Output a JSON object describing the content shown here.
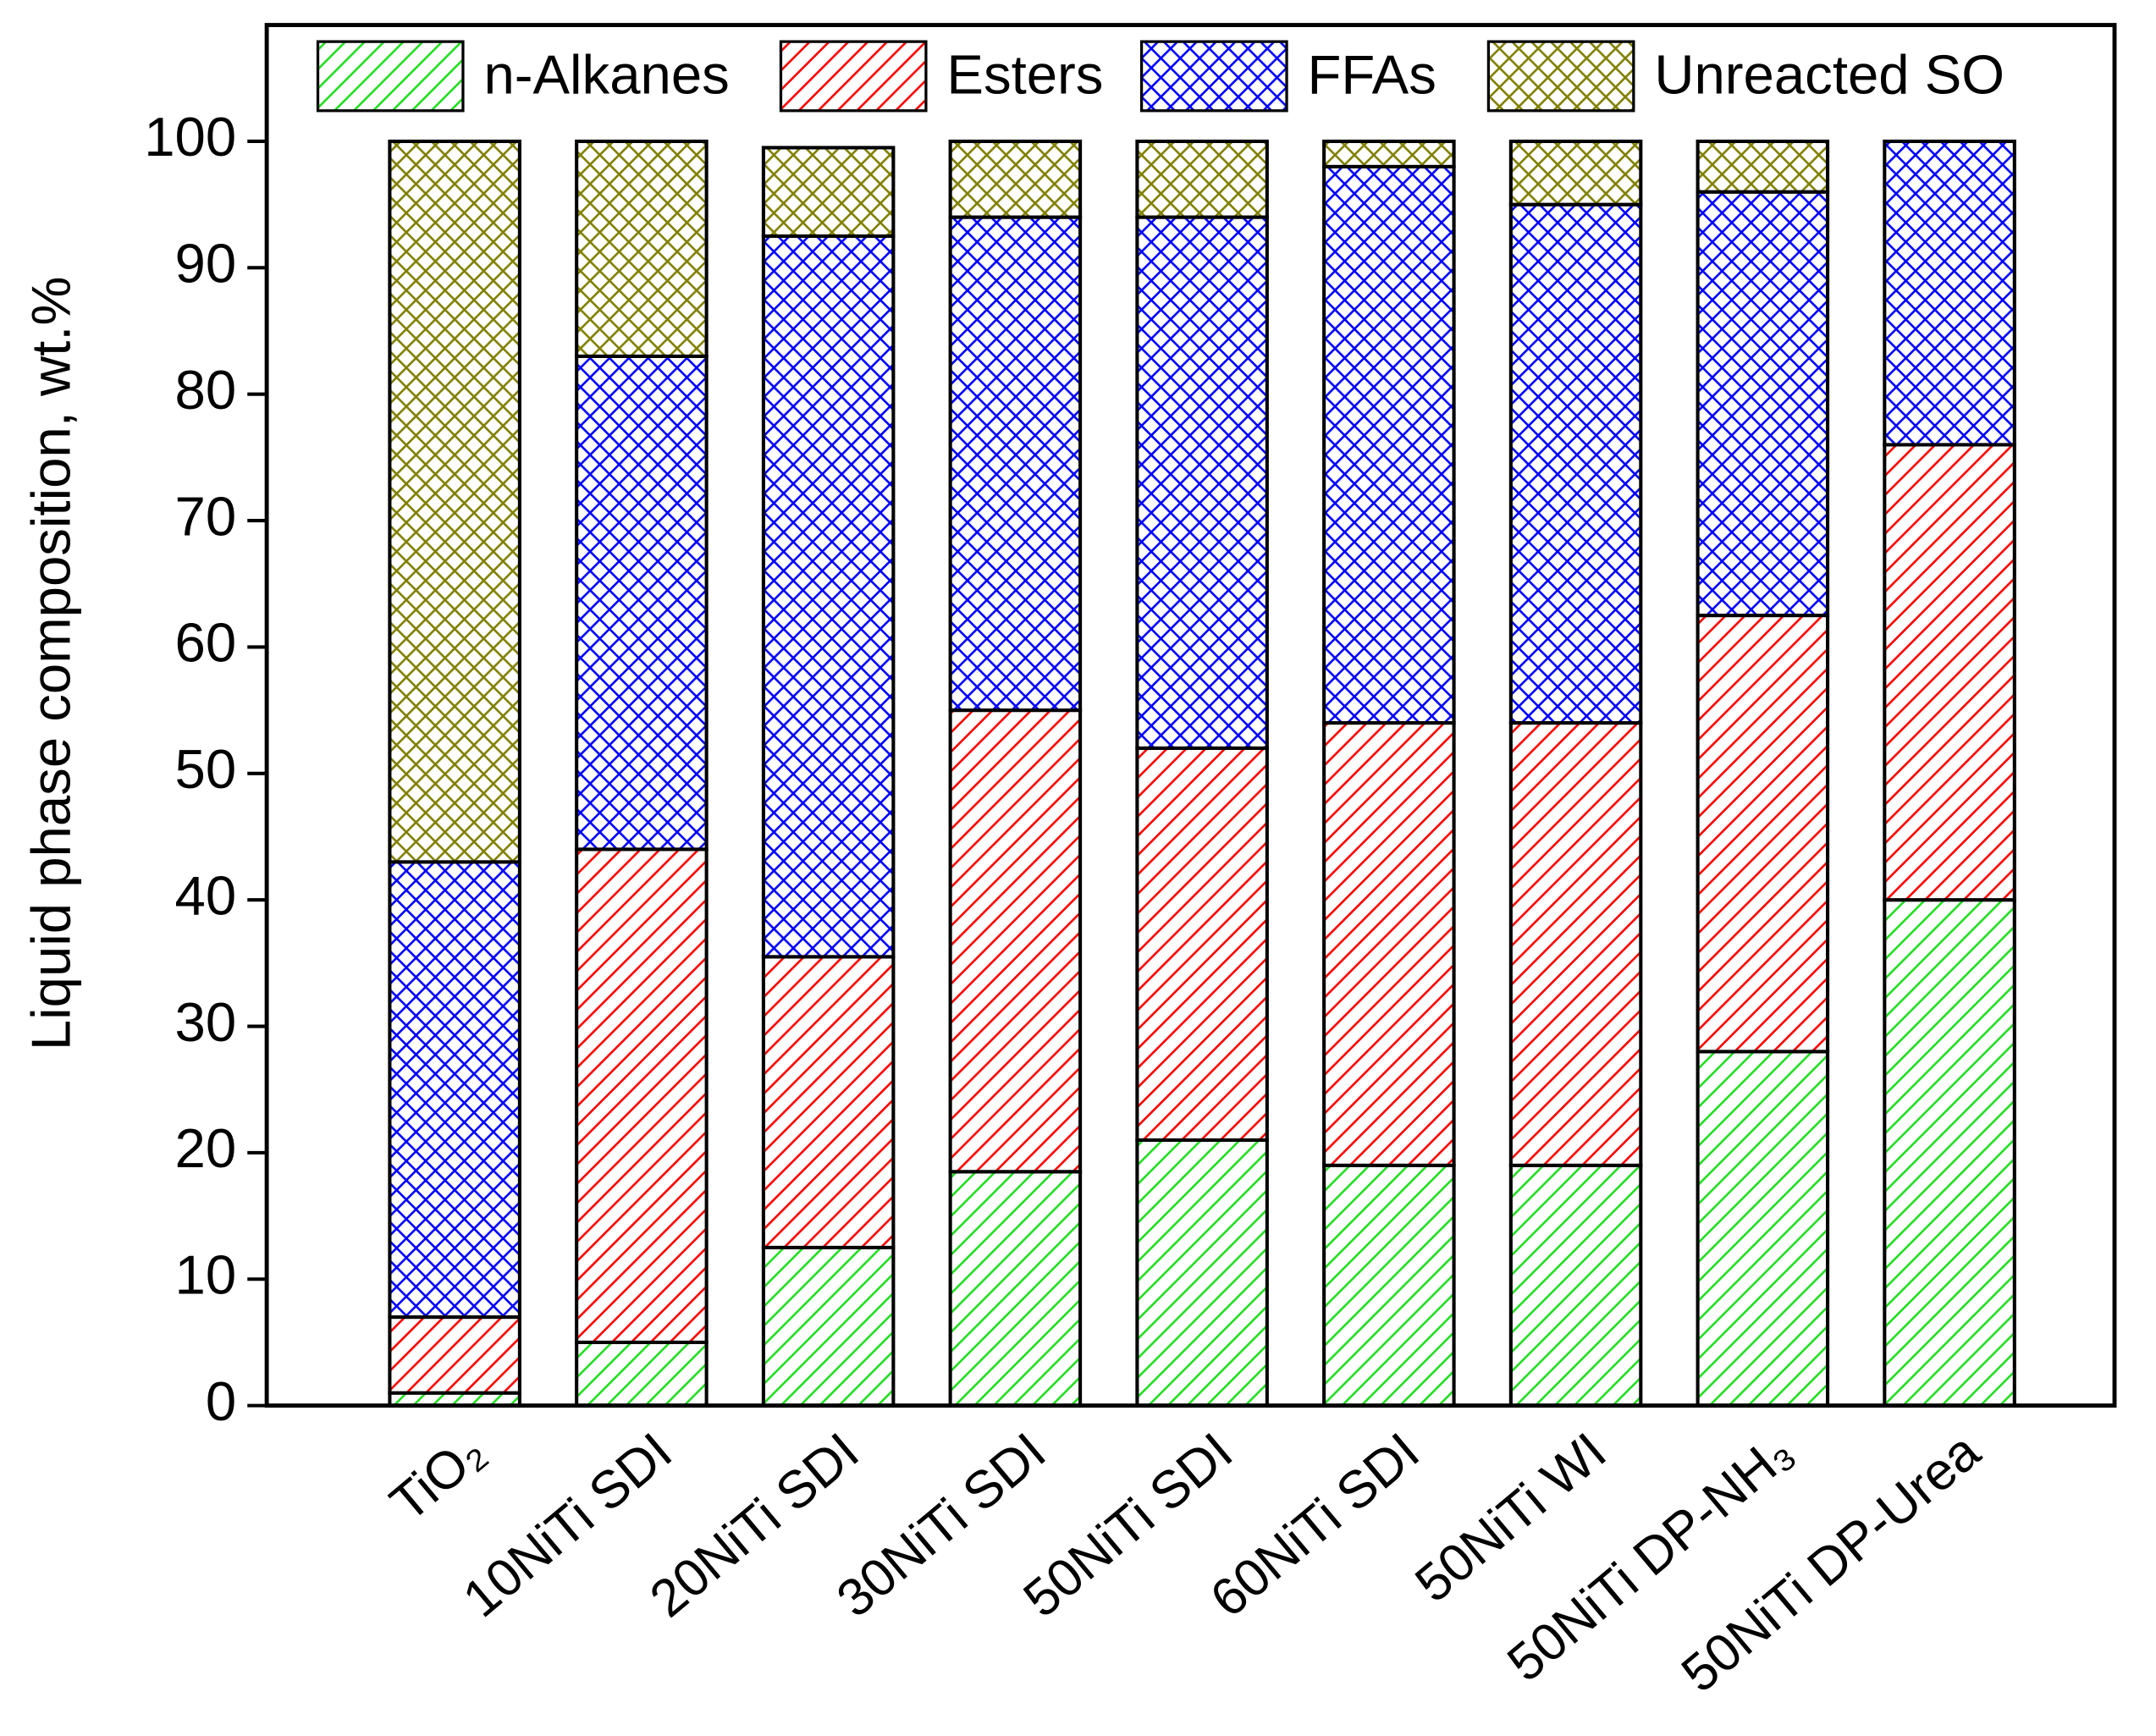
{
  "chart_data": {
    "type": "stacked_bar",
    "y_label": "Liquid phase composition, wt.%",
    "categories": [
      "TiO₂",
      "10NiTi SDI",
      "20NiTi  SDI",
      "30NiTi  SDI",
      "50NiTi  SDI",
      "60NiTi SDI",
      "50NiTi WI",
      "50NiTi DP-NH₃",
      "50NiTi DP-Urea"
    ],
    "series": [
      {
        "name": "n-Alkanes",
        "color": "#22dd22",
        "hatch": "diagonal",
        "values": [
          1,
          5,
          12.5,
          18.5,
          21,
          19,
          19,
          28,
          40
        ]
      },
      {
        "name": "Esters",
        "color": "#ff0000",
        "hatch": "diagonal",
        "values": [
          6,
          39,
          23,
          36.5,
          31,
          35,
          35,
          34.5,
          36
        ]
      },
      {
        "name": "FFAs",
        "color": "#0000ff",
        "hatch": "cross",
        "values": [
          36,
          39,
          57,
          39,
          42,
          44,
          41,
          33.5,
          24
        ]
      },
      {
        "name": "Unreacted SO",
        "color": "#808000",
        "hatch": "cross",
        "values": [
          57,
          17,
          7,
          6,
          6,
          2,
          5,
          4,
          0
        ]
      }
    ],
    "ylim": [
      0,
      109.2
    ],
    "yticks": [
      0,
      10,
      20,
      30,
      40,
      50,
      60,
      70,
      80,
      90,
      100
    ],
    "legend": "top"
  }
}
